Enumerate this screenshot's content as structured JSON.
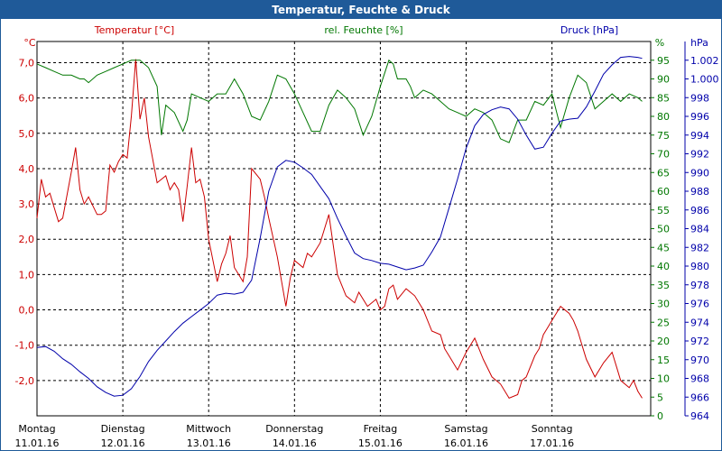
{
  "chart_data": {
    "type": "line",
    "title": "Temperatur, Feuchte & Druck",
    "colors": {
      "temperature": "#cc0000",
      "humidity": "#007700",
      "pressure": "#0000aa",
      "title_bg": "#1f5a99"
    },
    "x_labels": [
      {
        "day": "Montag",
        "date": "11.01.16"
      },
      {
        "day": "Dienstag",
        "date": "12.01.16"
      },
      {
        "day": "Mittwoch",
        "date": "13.01.16"
      },
      {
        "day": "Donnerstag",
        "date": "14.01.16"
      },
      {
        "day": "Freitag",
        "date": "15.01.16"
      },
      {
        "day": "Samstag",
        "date": "16.01.16"
      },
      {
        "day": "Sonntag",
        "date": "17.01.16"
      }
    ],
    "x_range_days": [
      0,
      7.15
    ],
    "axes": {
      "temperature": {
        "label": "Temperatur [°C]",
        "unit": "°C",
        "range": [
          -3.0,
          7.6
        ],
        "ticks": [
          "7,0",
          "6,0",
          "5,0",
          "4,0",
          "3,0",
          "2,0",
          "1,0",
          "0,0",
          "-1,0",
          "-2,0"
        ],
        "tick_values": [
          7,
          6,
          5,
          4,
          3,
          2,
          1,
          0,
          -1,
          -2
        ]
      },
      "humidity": {
        "label": "rel. Feuchte [%]",
        "unit": "%",
        "range": [
          0,
          100
        ],
        "ticks": [
          "95",
          "90",
          "85",
          "80",
          "75",
          "70",
          "65",
          "60",
          "55",
          "50",
          "45",
          "40",
          "35",
          "30",
          "25",
          "20",
          "15",
          "10",
          "5",
          "0"
        ],
        "tick_values": [
          95,
          90,
          85,
          80,
          75,
          70,
          65,
          60,
          55,
          50,
          45,
          40,
          35,
          30,
          25,
          20,
          15,
          10,
          5,
          0
        ]
      },
      "pressure": {
        "label": "Druck [hPa]",
        "unit": "hPa",
        "range": [
          964,
          1004
        ],
        "ticks": [
          "1.002",
          "1.000",
          "998",
          "996",
          "994",
          "992",
          "990",
          "988",
          "986",
          "984",
          "982",
          "980",
          "978",
          "976",
          "974",
          "972",
          "970",
          "968",
          "966",
          "964"
        ],
        "tick_values": [
          1002,
          1000,
          998,
          996,
          994,
          992,
          990,
          988,
          986,
          984,
          982,
          980,
          978,
          976,
          974,
          972,
          970,
          968,
          966,
          964
        ]
      }
    },
    "series": [
      {
        "name": "Temperatur [°C]",
        "axis": "temperature",
        "x": [
          0,
          0.05,
          0.1,
          0.15,
          0.2,
          0.25,
          0.3,
          0.4,
          0.45,
          0.5,
          0.55,
          0.6,
          0.7,
          0.75,
          0.8,
          0.85,
          0.9,
          0.95,
          1.0,
          1.05,
          1.1,
          1.15,
          1.2,
          1.25,
          1.3,
          1.4,
          1.5,
          1.55,
          1.6,
          1.65,
          1.7,
          1.75,
          1.8,
          1.85,
          1.9,
          1.95,
          2.0,
          2.1,
          2.15,
          2.2,
          2.25,
          2.3,
          2.35,
          2.4,
          2.45,
          2.5,
          2.6,
          2.65,
          2.7,
          2.8,
          2.9,
          2.95,
          3.0,
          3.1,
          3.15,
          3.2,
          3.3,
          3.4,
          3.5,
          3.55,
          3.6,
          3.7,
          3.75,
          3.85,
          3.95,
          4.0,
          4.05,
          4.1,
          4.15,
          4.2,
          4.3,
          4.4,
          4.5,
          4.6,
          4.7,
          4.75,
          4.8,
          4.9,
          5.0,
          5.1,
          5.2,
          5.3,
          5.4,
          5.5,
          5.6,
          5.65,
          5.7,
          5.8,
          5.85,
          5.9,
          5.95,
          6.0,
          6.1,
          6.2,
          6.25,
          6.3,
          6.35,
          6.4,
          6.5,
          6.6,
          6.7,
          6.75,
          6.8,
          6.9,
          6.95,
          7.0,
          7.05
        ],
        "y": [
          2.6,
          3.7,
          3.2,
          3.3,
          2.9,
          2.5,
          2.6,
          3.9,
          4.6,
          3.4,
          3.0,
          3.2,
          2.7,
          2.7,
          2.8,
          4.1,
          3.9,
          4.2,
          4.4,
          4.3,
          5.5,
          7.1,
          5.4,
          6.0,
          4.9,
          3.6,
          3.8,
          3.4,
          3.6,
          3.4,
          2.5,
          3.5,
          4.6,
          3.6,
          3.7,
          3.2,
          2.0,
          0.8,
          1.3,
          1.6,
          2.1,
          1.2,
          1.0,
          0.8,
          1.5,
          4.0,
          3.7,
          3.2,
          2.6,
          1.5,
          0.1,
          0.9,
          1.4,
          1.2,
          1.6,
          1.5,
          1.9,
          2.7,
          1.0,
          0.7,
          0.4,
          0.2,
          0.5,
          0.1,
          0.3,
          0.0,
          0.1,
          0.6,
          0.7,
          0.3,
          0.6,
          0.4,
          0.0,
          -0.6,
          -0.7,
          -1.1,
          -1.3,
          -1.7,
          -1.2,
          -0.8,
          -1.4,
          -1.9,
          -2.1,
          -2.5,
          -2.4,
          -2.0,
          -1.9,
          -1.3,
          -1.1,
          -0.7,
          -0.5,
          -0.3,
          0.1,
          -0.1,
          -0.3,
          -0.6,
          -1.0,
          -1.4,
          -1.9,
          -1.5,
          -1.2,
          -1.6,
          -2.0,
          -2.2,
          -2.0,
          -2.3,
          -2.5
        ],
        "color": "#cc0000"
      },
      {
        "name": "rel. Feuchte [%]",
        "axis": "humidity",
        "x": [
          0,
          0.1,
          0.2,
          0.3,
          0.4,
          0.5,
          0.55,
          0.6,
          0.7,
          0.8,
          0.9,
          1.0,
          1.1,
          1.2,
          1.3,
          1.4,
          1.45,
          1.5,
          1.6,
          1.7,
          1.75,
          1.8,
          1.9,
          2.0,
          2.1,
          2.2,
          2.3,
          2.4,
          2.5,
          2.6,
          2.7,
          2.8,
          2.9,
          3.0,
          3.1,
          3.2,
          3.3,
          3.4,
          3.5,
          3.6,
          3.7,
          3.8,
          3.9,
          4.0,
          4.1,
          4.15,
          4.2,
          4.3,
          4.35,
          4.4,
          4.5,
          4.6,
          4.7,
          4.8,
          4.9,
          5.0,
          5.1,
          5.2,
          5.3,
          5.4,
          5.5,
          5.6,
          5.7,
          5.8,
          5.9,
          6.0,
          6.1,
          6.2,
          6.3,
          6.4,
          6.5,
          6.6,
          6.7,
          6.8,
          6.9,
          7.0,
          7.05
        ],
        "y": [
          94,
          93,
          92,
          91,
          91,
          90,
          90,
          89,
          91,
          92,
          93,
          94,
          95,
          95,
          93,
          88,
          75,
          83,
          81,
          76,
          79,
          86,
          85,
          84,
          86,
          86,
          90,
          86,
          80,
          79,
          84,
          91,
          90,
          86,
          81,
          76,
          76,
          83,
          87,
          85,
          82,
          75,
          80,
          88,
          95,
          94,
          90,
          90,
          88,
          85,
          87,
          86,
          84,
          82,
          81,
          80,
          82,
          81,
          79,
          74,
          73,
          79,
          79,
          84,
          83,
          86,
          77,
          85,
          91,
          89,
          82,
          84,
          86,
          84,
          86,
          85,
          84
        ],
        "color": "#007700"
      },
      {
        "name": "Druck [hPa]",
        "axis": "pressure",
        "x": [
          0,
          0.1,
          0.2,
          0.3,
          0.4,
          0.5,
          0.6,
          0.7,
          0.8,
          0.9,
          1.0,
          1.1,
          1.2,
          1.3,
          1.4,
          1.5,
          1.6,
          1.7,
          1.8,
          1.9,
          2.0,
          2.1,
          2.2,
          2.3,
          2.4,
          2.5,
          2.6,
          2.7,
          2.8,
          2.9,
          3.0,
          3.1,
          3.2,
          3.3,
          3.4,
          3.5,
          3.6,
          3.7,
          3.8,
          3.9,
          4.0,
          4.1,
          4.2,
          4.3,
          4.4,
          4.5,
          4.6,
          4.7,
          4.8,
          4.9,
          5.0,
          5.1,
          5.2,
          5.3,
          5.4,
          5.5,
          5.6,
          5.7,
          5.8,
          5.9,
          6.0,
          6.1,
          6.2,
          6.3,
          6.4,
          6.5,
          6.6,
          6.7,
          6.8,
          6.9,
          7.0,
          7.05
        ],
        "y": [
          971.3,
          971.4,
          970.9,
          970.1,
          969.5,
          968.7,
          968.0,
          967.1,
          966.5,
          966.1,
          966.2,
          966.9,
          968.2,
          969.8,
          971.0,
          972.0,
          973.0,
          973.9,
          974.6,
          975.3,
          976.0,
          976.9,
          977.1,
          977.0,
          977.2,
          978.5,
          983.0,
          988.0,
          990.6,
          991.3,
          991.1,
          990.5,
          989.8,
          988.5,
          987.2,
          985.1,
          983.2,
          981.4,
          980.8,
          980.6,
          980.3,
          980.2,
          979.9,
          979.6,
          979.8,
          980.1,
          981.5,
          983.1,
          986.2,
          989.3,
          992.6,
          995.0,
          996.2,
          996.7,
          997.0,
          996.8,
          995.7,
          994.0,
          992.5,
          992.7,
          994.2,
          995.5,
          995.7,
          995.8,
          997.0,
          998.7,
          1000.5,
          1001.5,
          1002.3,
          1002.4,
          1002.3,
          1002.2
        ],
        "color": "#0000aa"
      }
    ]
  }
}
